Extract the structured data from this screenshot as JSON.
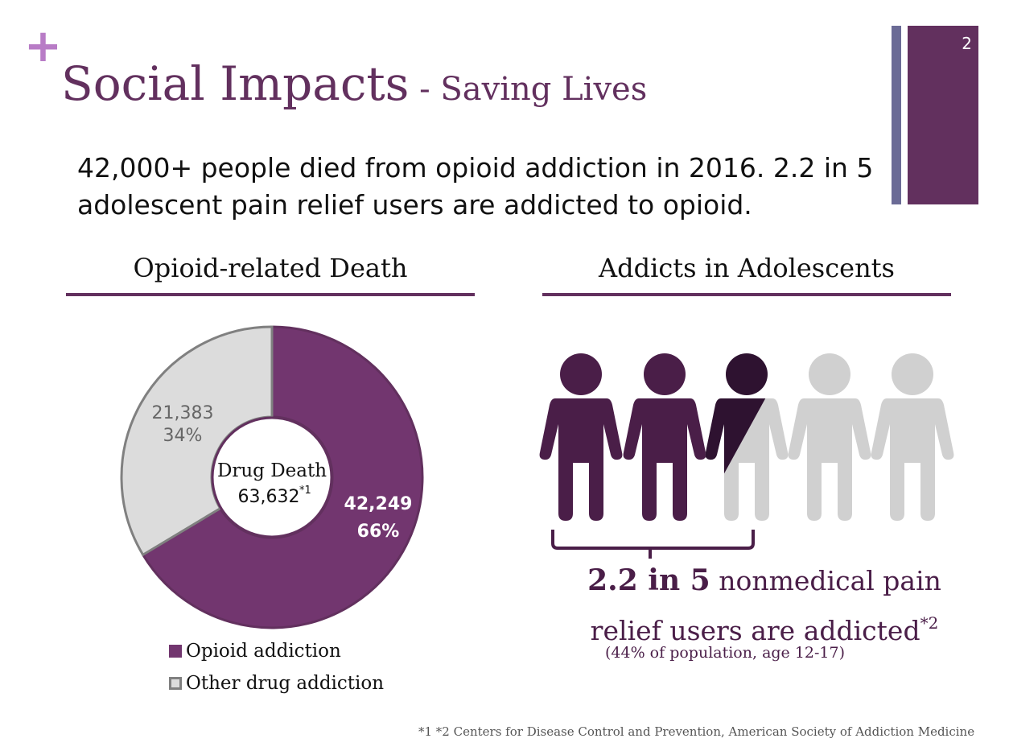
{
  "slide": {
    "plus": "+",
    "title_main": "Social Impacts",
    "title_sub": " - Saving Lives",
    "page_number": "2",
    "headline": "42,000+ people died from opioid addiction in 2016. 2.2 in 5 adolescent pain relief users are addicted to opioid.",
    "footnote": "*1 *2  Centers for Disease Control and Prevention, American Society of Addiction Medicine",
    "colors": {
      "brand": "#62305e",
      "accent": "#b87cc6",
      "side_bar": "#6b6b96"
    }
  },
  "chart_data": [
    {
      "type": "pie",
      "title": "Opioid-related Death",
      "center_label": "Drug Death",
      "center_value": "63,632",
      "center_sup": "*1",
      "series": [
        {
          "name": "Opioid addiction",
          "value": 42249,
          "value_label": "42,249",
          "percent_label": "66%",
          "color": "#72366f",
          "stroke": "#62305e"
        },
        {
          "name": "Other drug addiction",
          "value": 21383,
          "value_label": "21,383",
          "percent_label": "34%",
          "color": "#dcdcdc",
          "stroke": "#808080"
        }
      ]
    },
    {
      "type": "icon-array",
      "title": "Addicts in Adolescents",
      "total": 5,
      "filled": 2.2,
      "colors": [
        "#4a1e48",
        "#4a1e48",
        "#2e1230",
        "#d0d0d0",
        "#d0d0d0"
      ],
      "stat_number": "2.2 in 5",
      "stat_text": " nonmedical pain relief users are addicted",
      "stat_sup": "*2",
      "stat_note": "(44% of population, age 12-17)"
    }
  ]
}
